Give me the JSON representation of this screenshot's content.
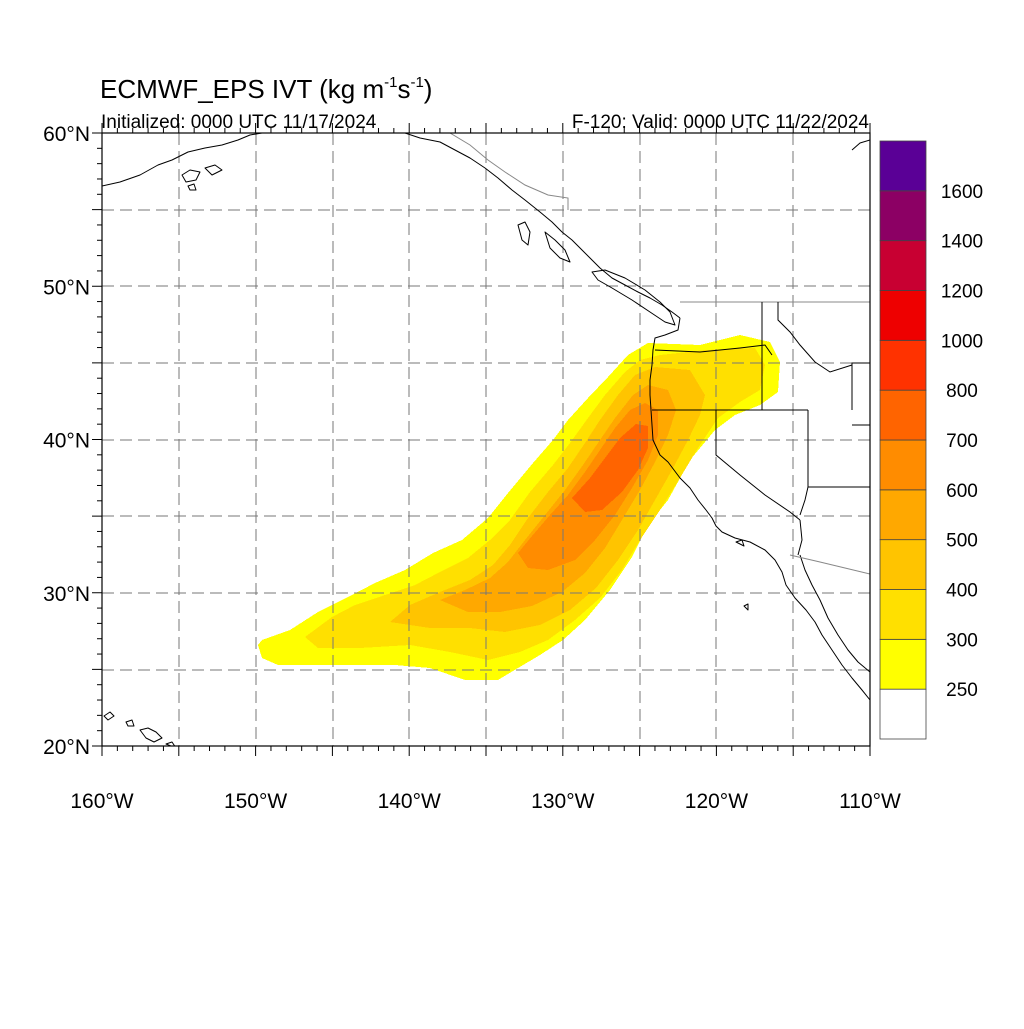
{
  "title": {
    "main": "ECMWF_EPS IVT (kg m",
    "sup1": "-1",
    "mid": "s",
    "sup2": "-1",
    "end": ")",
    "initialized": "Initialized: 0000 UTC 11/17/2024",
    "valid": "F-120: Valid: 0000 UTC 11/22/2024"
  },
  "map": {
    "projection": "cylindrical-equidistant",
    "lon_range": [
      -160,
      -110
    ],
    "lat_range": [
      20,
      60
    ],
    "grid": "dashed every 5 degrees",
    "lat_labels": [
      "20°N",
      "30°N",
      "40°N",
      "50°N",
      "60°N"
    ],
    "lon_labels": [
      "160°W",
      "150°W",
      "140°W",
      "130°W",
      "120°W",
      "110°W"
    ],
    "lat_label_values": [
      20,
      30,
      40,
      50,
      60
    ],
    "lon_label_values": [
      -160,
      -150,
      -140,
      -130,
      -120,
      -110
    ],
    "ivt_plume_axis": [
      {
        "lon": -149.5,
        "lat": 26.5,
        "ivt": 260
      },
      {
        "lon": -146,
        "lat": 27.5,
        "ivt": 320
      },
      {
        "lon": -141,
        "lat": 28.8,
        "ivt": 380
      },
      {
        "lon": -137,
        "lat": 29.5,
        "ivt": 450
      },
      {
        "lon": -133.5,
        "lat": 31.0,
        "ivt": 520
      },
      {
        "lon": -131,
        "lat": 33.0,
        "ivt": 600
      },
      {
        "lon": -128.5,
        "lat": 35.0,
        "ivt": 640
      },
      {
        "lon": -126.5,
        "lat": 37.0,
        "ivt": 700
      },
      {
        "lon": -125,
        "lat": 39.5,
        "ivt": 680
      },
      {
        "lon": -124,
        "lat": 42.5,
        "ivt": 520
      },
      {
        "lon": -121,
        "lat": 44.5,
        "ivt": 330
      },
      {
        "lon": -117,
        "lat": 45.5,
        "ivt": 270
      }
    ]
  },
  "colorbar": {
    "levels": [
      250,
      300,
      400,
      500,
      600,
      700,
      800,
      1000,
      1200,
      1400,
      1600
    ],
    "labels": [
      "250",
      "300",
      "400",
      "500",
      "600",
      "700",
      "800",
      "1000",
      "1200",
      "1400",
      "1600"
    ],
    "colors": [
      "#ffffff",
      "#ffff00",
      "#ffe000",
      "#ffc400",
      "#ffa800",
      "#ff8c00",
      "#ff6400",
      "#ff3200",
      "#ee0000",
      "#c80032",
      "#8c0064",
      "#5a0096"
    ]
  }
}
